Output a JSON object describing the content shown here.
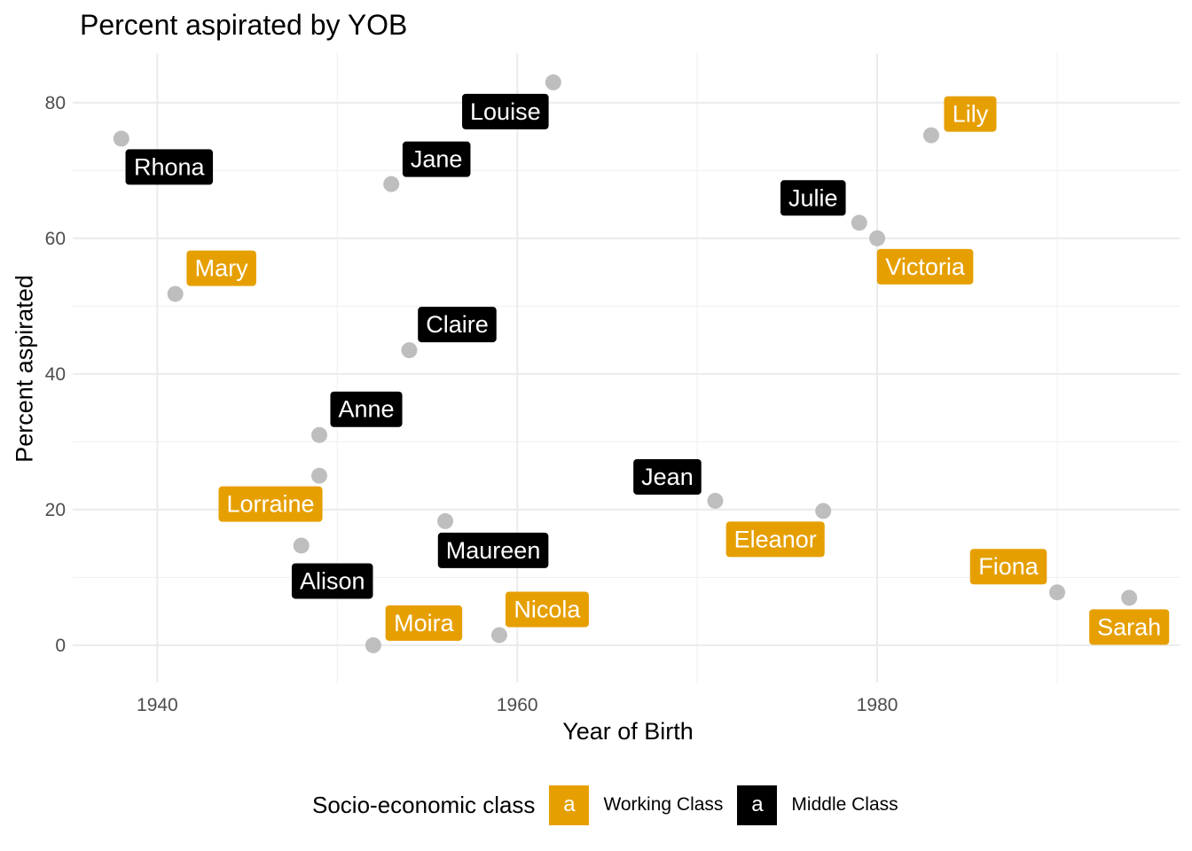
{
  "chart_data": {
    "type": "scatter",
    "title": "Percent aspirated by YOB",
    "xlabel": "Year of Birth",
    "ylabel": "Percent aspirated",
    "xlim": [
      1935.3,
      1996.8
    ],
    "ylim": [
      -5.5,
      87.3
    ],
    "x_ticks": [
      1940,
      1960,
      1980
    ],
    "y_ticks": [
      0,
      20,
      40,
      60,
      80
    ],
    "grid": true,
    "point_color": "#BEBEBE",
    "legend": {
      "title": "Socio-economic class",
      "position": "bottom",
      "key_glyph": "a",
      "entries": [
        {
          "label": "Working Class",
          "color": "#E69F00"
        },
        {
          "label": "Middle Class",
          "color": "#000000"
        }
      ]
    },
    "points": [
      {
        "name": "Rhona",
        "x": 1938,
        "y": 74.7,
        "class": "Middle Class"
      },
      {
        "name": "Mary",
        "x": 1941,
        "y": 51.8,
        "class": "Working Class"
      },
      {
        "name": "Lorraine",
        "x": 1949,
        "y": 25.0,
        "class": "Working Class"
      },
      {
        "name": "Anne",
        "x": 1949,
        "y": 31.0,
        "class": "Middle Class"
      },
      {
        "name": "Alison",
        "x": 1948,
        "y": 14.7,
        "class": "Middle Class"
      },
      {
        "name": "Moira",
        "x": 1952,
        "y": 0.0,
        "class": "Working Class"
      },
      {
        "name": "Jane",
        "x": 1953,
        "y": 68.0,
        "class": "Middle Class"
      },
      {
        "name": "Claire",
        "x": 1954,
        "y": 43.5,
        "class": "Middle Class"
      },
      {
        "name": "Maureen",
        "x": 1956,
        "y": 18.3,
        "class": "Middle Class"
      },
      {
        "name": "Nicola",
        "x": 1959,
        "y": 1.5,
        "class": "Working Class"
      },
      {
        "name": "Louise",
        "x": 1962,
        "y": 83.0,
        "class": "Middle Class"
      },
      {
        "name": "Jean",
        "x": 1971,
        "y": 21.3,
        "class": "Middle Class"
      },
      {
        "name": "Eleanor",
        "x": 1977,
        "y": 19.8,
        "class": "Working Class"
      },
      {
        "name": "Julie",
        "x": 1979,
        "y": 62.3,
        "class": "Middle Class"
      },
      {
        "name": "Victoria",
        "x": 1980,
        "y": 60.0,
        "class": "Working Class"
      },
      {
        "name": "Lily",
        "x": 1983,
        "y": 75.2,
        "class": "Working Class"
      },
      {
        "name": "Fiona",
        "x": 1990,
        "y": 7.8,
        "class": "Working Class"
      },
      {
        "name": "Sarah",
        "x": 1994,
        "y": 7.0,
        "class": "Working Class"
      }
    ]
  }
}
